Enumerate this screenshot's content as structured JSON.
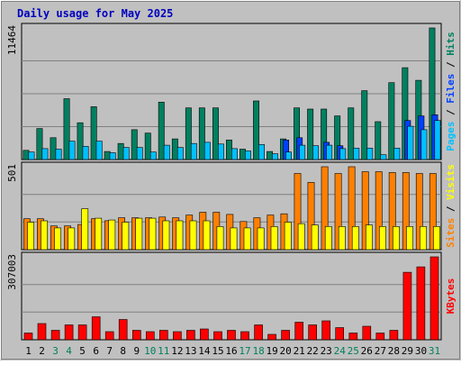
{
  "chart_data": {
    "type": "bar",
    "title": "Daily usage for May 2025",
    "categories": [
      "1",
      "2",
      "3",
      "4",
      "5",
      "6",
      "7",
      "8",
      "9",
      "10",
      "11",
      "12",
      "13",
      "14",
      "15",
      "16",
      "17",
      "18",
      "19",
      "20",
      "21",
      "22",
      "23",
      "24",
      "25",
      "26",
      "27",
      "28",
      "29",
      "30",
      "31"
    ],
    "weekend_days": [
      "3",
      "4",
      "10",
      "11",
      "17",
      "18",
      "24",
      "25",
      "31"
    ],
    "panels": [
      {
        "name": "hits-files-pages",
        "max_label": "11464",
        "ylim": [
          0,
          11464
        ],
        "side_label": [
          "Pages",
          "Files",
          "Hits"
        ],
        "series": [
          {
            "name": "Hits",
            "color": "#008060",
            "values": [
              800,
              2700,
              1900,
              5300,
              3200,
              4600,
              700,
              1400,
              2600,
              2300,
              5000,
              1800,
              4500,
              4500,
              4500,
              1700,
              900,
              5100,
              700,
              1800,
              4500,
              4400,
              4400,
              3800,
              4500,
              6000,
              3300,
              6700,
              8000,
              6900,
              11464
            ]
          },
          {
            "name": "Files",
            "color": "#0040ff",
            "values": [
              0,
              0,
              0,
              0,
              0,
              0,
              0,
              0,
              0,
              0,
              0,
              0,
              0,
              0,
              0,
              0,
              0,
              0,
              0,
              1700,
              1900,
              0,
              1500,
              1200,
              0,
              0,
              0,
              0,
              3400,
              3800,
              3900
            ]
          },
          {
            "name": "Pages",
            "color": "#00c0ff",
            "values": [
              650,
              950,
              900,
              1600,
              1150,
              1600,
              600,
              1050,
              1050,
              650,
              1250,
              1050,
              1400,
              1500,
              1350,
              950,
              750,
              1300,
              500,
              650,
              1250,
              1200,
              1250,
              950,
              1000,
              1000,
              420,
              1000,
              2900,
              2600,
              3400
            ]
          }
        ]
      },
      {
        "name": "visits-sites",
        "max_label": "501",
        "ylim": [
          0,
          501
        ],
        "side_label": [
          "Sites",
          "Visits"
        ],
        "series": [
          {
            "name": "Visits",
            "color": "#ff8000",
            "values": [
              187,
              187,
              143,
              143,
              152,
              187,
              175,
              193,
              193,
              193,
              197,
              193,
              209,
              226,
              226,
              213,
              170,
              193,
              209,
              217,
              460,
              406,
              501,
              460,
              501,
              471,
              471,
              466,
              466,
              460,
              460
            ]
          },
          {
            "name": "Sites",
            "color": "#ffff00",
            "values": [
              166,
              174,
              131,
              131,
              247,
              190,
              179,
              166,
              190,
              190,
              174,
              174,
              174,
              174,
              140,
              131,
              131,
              131,
              140,
              166,
              157,
              149,
              140,
              140,
              140,
              149,
              140,
              140,
              140,
              140,
              140
            ]
          }
        ]
      },
      {
        "name": "kbytes",
        "max_label": "307003",
        "ylim": [
          0,
          307003
        ],
        "side_label": [
          "KBytes"
        ],
        "series": [
          {
            "name": "KBytes",
            "color": "#ff0000",
            "values": [
              25000,
              60000,
              35000,
              55000,
              55000,
              85000,
              30000,
              75000,
              35000,
              30000,
              35000,
              30000,
              35000,
              40000,
              30000,
              35000,
              30000,
              55000,
              20000,
              35000,
              65000,
              55000,
              70000,
              45000,
              25000,
              50000,
              25000,
              35000,
              250000,
              270000,
              307003
            ]
          }
        ]
      }
    ]
  }
}
